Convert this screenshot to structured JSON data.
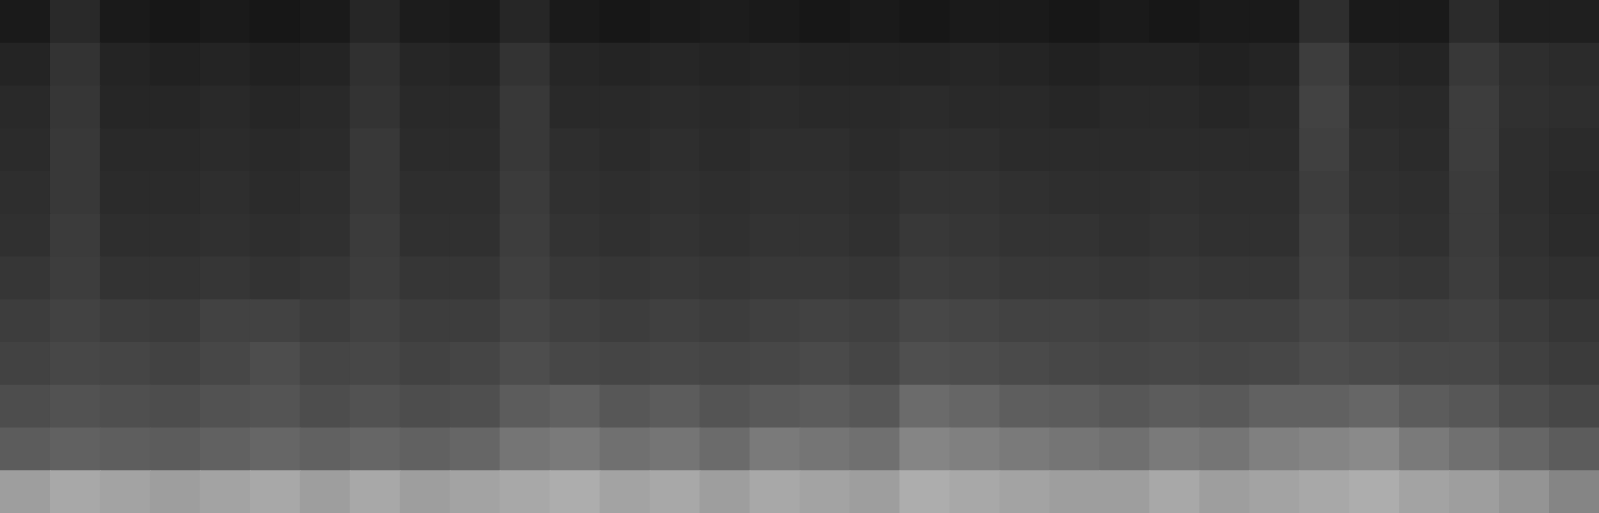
{
  "chart_data": {
    "type": "heatmap",
    "tick_labels": false,
    "zlim": [
      0,
      100
    ],
    "cells": [
      [
        10,
        16,
        10,
        9,
        10,
        9,
        10,
        15,
        11,
        10,
        15,
        10,
        9,
        10,
        11,
        10,
        9,
        10,
        9,
        10,
        10,
        9,
        10,
        9,
        10,
        10,
        18,
        10,
        10,
        17,
        12,
        12
      ],
      [
        14,
        20,
        14,
        13,
        14,
        13,
        14,
        19,
        15,
        14,
        20,
        15,
        14,
        15,
        14,
        15,
        14,
        14,
        14,
        15,
        14,
        13,
        14,
        14,
        13,
        14,
        24,
        15,
        14,
        22,
        18,
        17
      ],
      [
        16,
        21,
        15,
        15,
        16,
        15,
        16,
        20,
        16,
        16,
        22,
        16,
        16,
        17,
        16,
        17,
        16,
        16,
        17,
        16,
        16,
        15,
        16,
        16,
        15,
        16,
        26,
        17,
        16,
        24,
        19,
        18
      ],
      [
        17,
        22,
        16,
        16,
        17,
        16,
        17,
        22,
        17,
        17,
        22,
        18,
        17,
        18,
        17,
        18,
        18,
        17,
        18,
        18,
        17,
        17,
        17,
        17,
        17,
        17,
        25,
        18,
        17,
        24,
        18,
        17
      ],
      [
        18,
        22,
        17,
        17,
        18,
        17,
        18,
        22,
        18,
        18,
        23,
        19,
        18,
        19,
        18,
        19,
        19,
        18,
        20,
        20,
        19,
        18,
        18,
        19,
        18,
        18,
        24,
        19,
        18,
        23,
        18,
        16
      ],
      [
        19,
        23,
        18,
        18,
        19,
        18,
        19,
        23,
        19,
        19,
        24,
        20,
        19,
        20,
        19,
        20,
        20,
        19,
        22,
        21,
        20,
        20,
        19,
        20,
        19,
        19,
        25,
        20,
        19,
        23,
        19,
        17
      ],
      [
        21,
        24,
        20,
        20,
        21,
        20,
        21,
        24,
        21,
        21,
        25,
        22,
        21,
        22,
        21,
        22,
        22,
        21,
        24,
        23,
        22,
        22,
        21,
        22,
        21,
        21,
        26,
        22,
        21,
        24,
        20,
        19
      ],
      [
        24,
        26,
        24,
        23,
        26,
        26,
        24,
        26,
        24,
        24,
        27,
        25,
        24,
        25,
        24,
        25,
        26,
        25,
        28,
        27,
        26,
        26,
        25,
        26,
        25,
        25,
        28,
        26,
        25,
        26,
        23,
        21
      ],
      [
        26,
        28,
        27,
        26,
        28,
        30,
        27,
        28,
        26,
        27,
        30,
        28,
        27,
        28,
        27,
        28,
        29,
        27,
        31,
        30,
        29,
        28,
        27,
        28,
        27,
        28,
        30,
        29,
        28,
        28,
        25,
        23
      ],
      [
        30,
        32,
        31,
        30,
        32,
        33,
        30,
        32,
        30,
        31,
        36,
        38,
        34,
        36,
        33,
        35,
        36,
        34,
        42,
        40,
        37,
        36,
        34,
        36,
        35,
        38,
        38,
        40,
        36,
        34,
        30,
        28
      ],
      [
        36,
        38,
        37,
        36,
        38,
        40,
        38,
        40,
        38,
        40,
        46,
        48,
        44,
        46,
        42,
        48,
        46,
        44,
        52,
        50,
        48,
        46,
        44,
        48,
        46,
        50,
        52,
        54,
        48,
        44,
        40,
        36
      ],
      [
        62,
        66,
        64,
        62,
        64,
        66,
        62,
        66,
        62,
        64,
        66,
        68,
        64,
        66,
        62,
        66,
        64,
        62,
        68,
        66,
        64,
        62,
        62,
        66,
        62,
        64,
        66,
        68,
        64,
        62,
        58,
        52
      ]
    ]
  }
}
